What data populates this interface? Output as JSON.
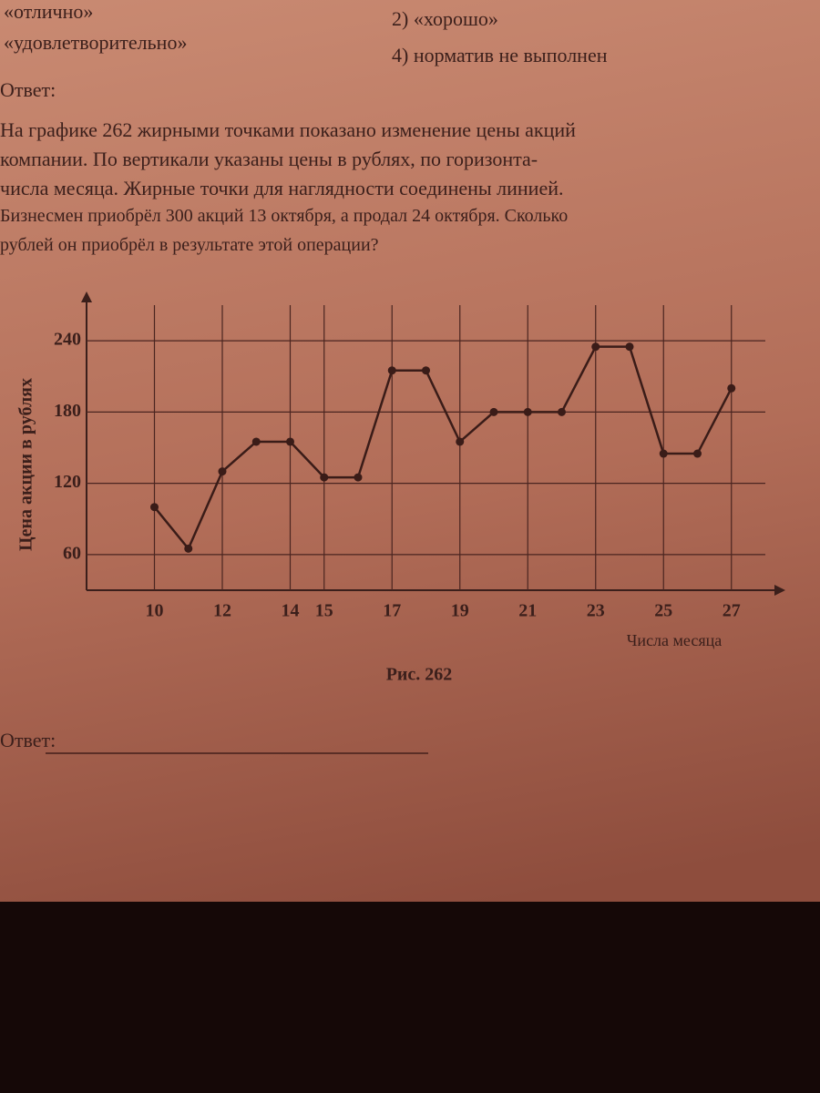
{
  "header": {
    "options": [
      "«отлично»",
      "2) «хорошо»",
      "«удовлетворительно»",
      "4) норматив не выполнен"
    ],
    "answer_label": "Ответ:"
  },
  "problem": {
    "lines": [
      "На графике 262 жирными точками показано изменение цены акций",
      "компании. По вертикали указаны цены в рублях, по горизонта-",
      "числа месяца. Жирные точки для наглядности соединены линией.",
      "Бизнесмен приобрёл 300 акций 13 октября, а продал 24 октября. Сколько",
      "рублей он приобрёл в результате этой операции?"
    ]
  },
  "chart_data": {
    "type": "line",
    "y_label": "Цена акции в рублях",
    "x_label": "Числа месяца",
    "caption": "Рис. 262",
    "x": [
      10,
      11,
      12,
      13,
      14,
      15,
      16,
      17,
      18,
      19,
      20,
      21,
      22,
      23,
      24,
      25,
      26,
      27
    ],
    "values": [
      100,
      65,
      130,
      155,
      155,
      125,
      125,
      215,
      215,
      155,
      180,
      180,
      180,
      235,
      235,
      145,
      145,
      200
    ],
    "color": "#3a1c18",
    "xlim": [
      8,
      28
    ],
    "xticks": [
      10,
      12,
      14,
      15,
      17,
      19,
      21,
      23,
      25,
      27
    ],
    "ylim": [
      30,
      270
    ],
    "yticks": [
      60,
      120,
      180,
      240
    ],
    "grid": true
  },
  "footer": {
    "answer_label": "Ответ:"
  }
}
